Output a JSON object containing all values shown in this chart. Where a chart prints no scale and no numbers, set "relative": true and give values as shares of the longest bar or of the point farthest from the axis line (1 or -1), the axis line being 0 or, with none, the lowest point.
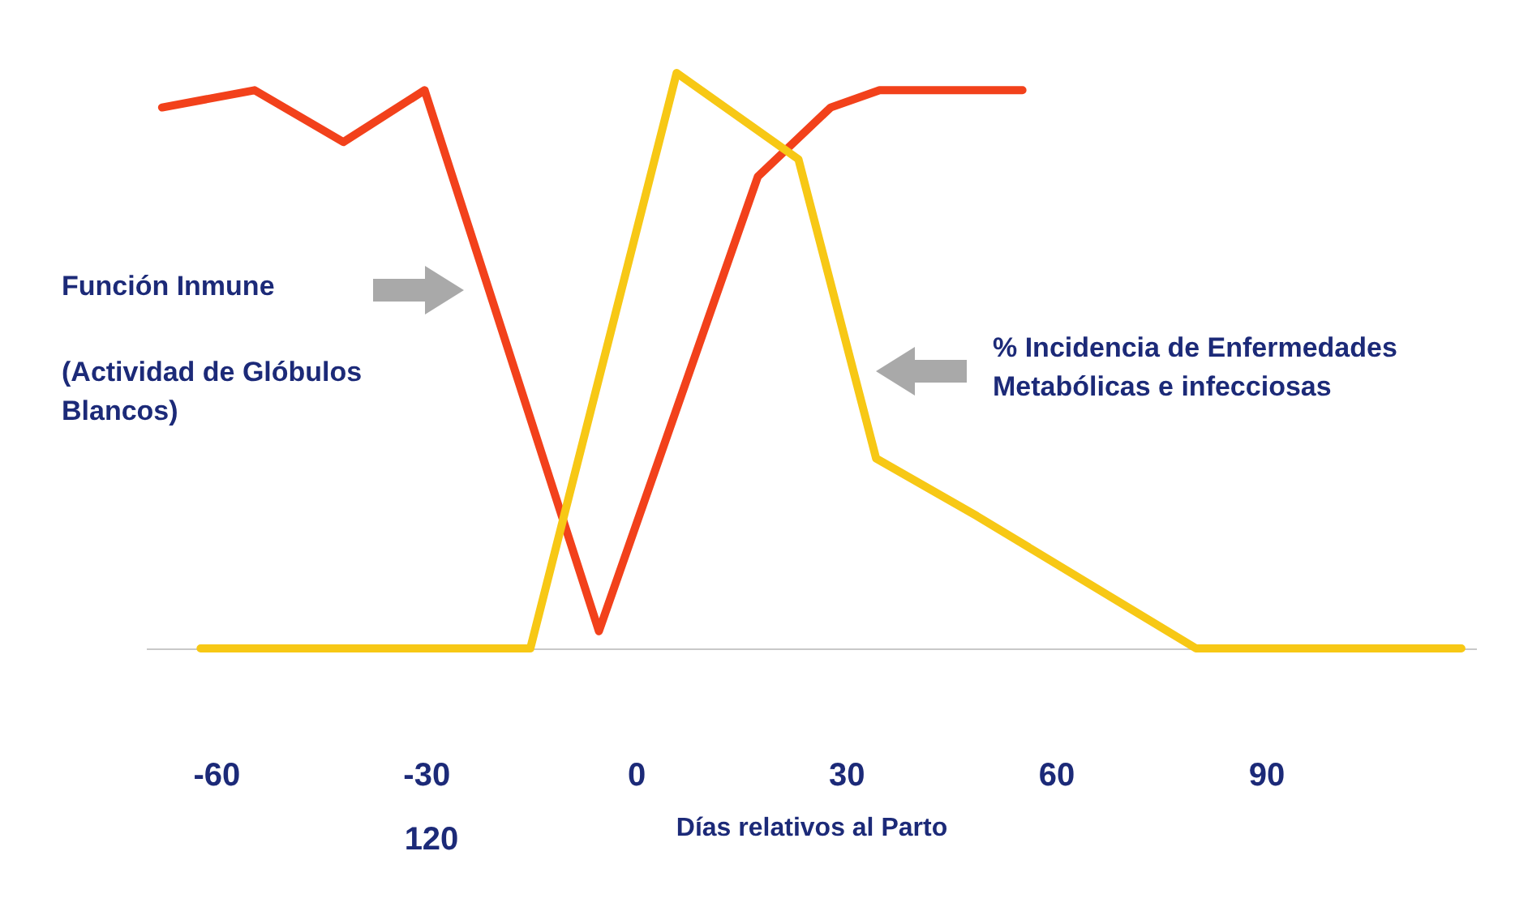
{
  "chart_data": {
    "type": "line",
    "relative": true,
    "xlabel": "Días relativos al Parto",
    "xlim": [
      -70,
      120
    ],
    "xticks": [
      -60,
      -30,
      0,
      30,
      60,
      90
    ],
    "grid": false,
    "line_style": "solid",
    "marker": "none",
    "annotations": [
      "Función Inmune",
      "(Actividad de Glóbulos Blancos)",
      "% Incidencia de Enfermedades Metabólicas e infecciosas",
      "120"
    ],
    "series": [
      {
        "color": "#f2411b",
        "x": [
          -67.7,
          -54.5,
          -41.8,
          -30.2,
          -5.3,
          17.4,
          27.8,
          34.8,
          55.2
        ],
        "values": [
          0.94,
          0.97,
          0.88,
          0.97,
          0.03,
          0.82,
          0.94,
          0.97,
          0.97
        ]
      },
      {
        "color": "#f7c815",
        "x": [
          -62.2,
          -15.1,
          5.8,
          23.2,
          34.3,
          48.7,
          80.0,
          117.9
        ],
        "values": [
          0,
          0,
          1,
          0.85,
          0.33,
          0.23,
          0,
          0
        ]
      }
    ]
  }
}
